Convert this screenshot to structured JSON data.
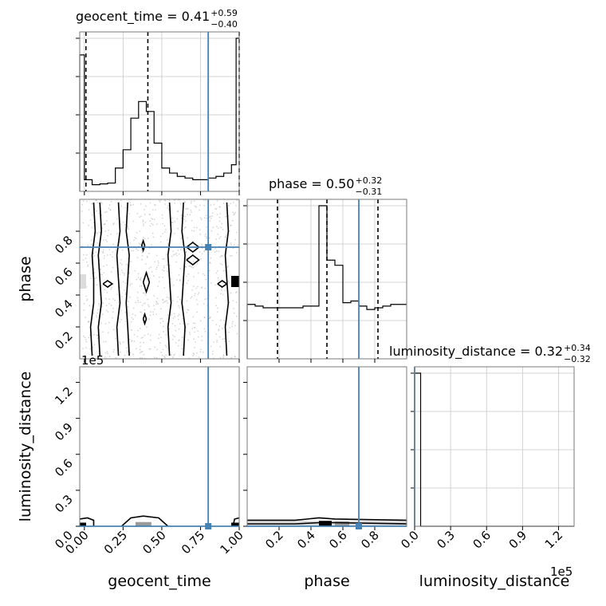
{
  "colors": {
    "truth": "#4682b4",
    "hist": "#000000",
    "density_light": "#dcdcdc",
    "density_mid": "#9a9a9a",
    "density_dark": "#000000"
  },
  "chart_data": {
    "type": "corner",
    "parameters": [
      "geocent_time",
      "phase",
      "luminosity_distance"
    ],
    "truths": {
      "geocent_time": 0.8,
      "phase": 0.7,
      "luminosity_distance": 0
    },
    "titles": [
      {
        "label": "geocent_time = 0.41",
        "plus": "+0.59",
        "minus": "−0.40"
      },
      {
        "label": "phase = 0.50",
        "plus": "+0.32",
        "minus": "−0.31"
      },
      {
        "label": "luminosity_distance = 0.32",
        "plus": "+0.34",
        "minus": "−0.32"
      }
    ],
    "axes": {
      "geocent_time": {
        "xlim": [
          -0.03,
          1.0
        ],
        "ticks": [
          "0.00",
          "0.25",
          "0.50",
          "0.75",
          "1.00"
        ],
        "tick_values": [
          0.0,
          0.25,
          0.5,
          0.75,
          1.0
        ]
      },
      "phase": {
        "xlim": [
          0.0,
          1.0
        ],
        "ticks": [
          "0.2",
          "0.4",
          "0.6",
          "0.8"
        ],
        "tick_values": [
          0.2,
          0.4,
          0.6,
          0.8
        ]
      },
      "luminosity_distance": {
        "xlim": [
          0,
          1.33
        ],
        "ticks": [
          "0.0",
          "0.3",
          "0.6",
          "0.9",
          "1.2"
        ],
        "tick_values": [
          0.0,
          0.3,
          0.6,
          0.9,
          1.2
        ],
        "offset_text": "1e5"
      }
    },
    "histograms": {
      "geocent_time": {
        "bins": [
          -0.03,
          0.0,
          0.05,
          0.1,
          0.15,
          0.2,
          0.25,
          0.3,
          0.35,
          0.4,
          0.45,
          0.5,
          0.55,
          0.6,
          0.65,
          0.7,
          0.75,
          0.8,
          0.85,
          0.9,
          0.95,
          0.98,
          1.0
        ],
        "counts": [
          0.82,
          0.07,
          0.04,
          0.045,
          0.05,
          0.14,
          0.25,
          0.44,
          0.54,
          0.48,
          0.29,
          0.14,
          0.11,
          0.09,
          0.08,
          0.07,
          0.07,
          0.08,
          0.09,
          0.11,
          0.16,
          0.92
        ],
        "quantiles": [
          0.01,
          0.41,
          1.0
        ]
      },
      "phase": {
        "bins": [
          0.0,
          0.05,
          0.1,
          0.15,
          0.2,
          0.25,
          0.3,
          0.35,
          0.4,
          0.45,
          0.5,
          0.55,
          0.6,
          0.65,
          0.7,
          0.75,
          0.8,
          0.85,
          0.9,
          0.95,
          1.0
        ],
        "counts": [
          0.32,
          0.31,
          0.3,
          0.3,
          0.3,
          0.3,
          0.3,
          0.31,
          0.31,
          0.9,
          0.58,
          0.55,
          0.33,
          0.34,
          0.31,
          0.29,
          0.3,
          0.31,
          0.32,
          0.32
        ],
        "quantiles": [
          0.19,
          0.5,
          0.82
        ]
      },
      "luminosity_distance": {
        "bins": [
          0,
          0.05,
          1.33
        ],
        "counts": [
          1.0,
          0.0
        ],
        "quantiles": []
      }
    },
    "contours_geocent_phase": [
      [
        [
          0.05,
          0.02
        ],
        [
          0.04,
          0.2
        ],
        [
          0.06,
          0.35
        ],
        [
          0.06,
          0.5
        ],
        [
          0.05,
          0.65
        ],
        [
          0.07,
          0.8
        ],
        [
          0.06,
          0.98
        ]
      ],
      [
        [
          0.1,
          0.02
        ],
        [
          0.09,
          0.2
        ],
        [
          0.11,
          0.35
        ],
        [
          0.1,
          0.5
        ],
        [
          0.09,
          0.65
        ],
        [
          0.11,
          0.8
        ],
        [
          0.1,
          0.98
        ]
      ],
      [
        [
          0.22,
          0.02
        ],
        [
          0.21,
          0.2
        ],
        [
          0.23,
          0.35
        ],
        [
          0.22,
          0.5
        ],
        [
          0.21,
          0.65
        ],
        [
          0.23,
          0.8
        ],
        [
          0.22,
          0.98
        ]
      ],
      [
        [
          0.29,
          0.02
        ],
        [
          0.28,
          0.2
        ],
        [
          0.27,
          0.35
        ],
        [
          0.28,
          0.5
        ],
        [
          0.29,
          0.65
        ],
        [
          0.27,
          0.8
        ],
        [
          0.28,
          0.98
        ]
      ],
      [
        [
          0.55,
          0.02
        ],
        [
          0.54,
          0.2
        ],
        [
          0.56,
          0.35
        ],
        [
          0.55,
          0.5
        ],
        [
          0.54,
          0.65
        ],
        [
          0.56,
          0.8
        ],
        [
          0.55,
          0.98
        ]
      ],
      [
        [
          0.64,
          0.02
        ],
        [
          0.65,
          0.2
        ],
        [
          0.63,
          0.35
        ],
        [
          0.64,
          0.5
        ],
        [
          0.65,
          0.65
        ],
        [
          0.63,
          0.8
        ],
        [
          0.64,
          0.98
        ]
      ],
      [
        [
          0.92,
          0.02
        ],
        [
          0.91,
          0.2
        ],
        [
          0.93,
          0.35
        ],
        [
          0.92,
          0.5
        ],
        [
          0.91,
          0.65
        ],
        [
          0.93,
          0.8
        ],
        [
          0.92,
          0.98
        ]
      ]
    ],
    "contour_loops_geocent_phase": [
      [
        [
          0.38,
          0.48
        ],
        [
          0.4,
          0.54
        ],
        [
          0.42,
          0.48
        ],
        [
          0.4,
          0.42
        ],
        [
          0.38,
          0.48
        ]
      ],
      [
        [
          0.38,
          0.25
        ],
        [
          0.39,
          0.28
        ],
        [
          0.4,
          0.25
        ],
        [
          0.39,
          0.22
        ],
        [
          0.38,
          0.25
        ]
      ],
      [
        [
          0.37,
          0.71
        ],
        [
          0.38,
          0.74
        ],
        [
          0.39,
          0.71
        ],
        [
          0.38,
          0.68
        ],
        [
          0.37,
          0.71
        ]
      ],
      [
        [
          0.66,
          0.7
        ],
        [
          0.7,
          0.73
        ],
        [
          0.74,
          0.7
        ],
        [
          0.7,
          0.67
        ],
        [
          0.66,
          0.7
        ]
      ],
      [
        [
          0.66,
          0.62
        ],
        [
          0.7,
          0.65
        ],
        [
          0.74,
          0.62
        ],
        [
          0.7,
          0.59
        ],
        [
          0.66,
          0.62
        ]
      ],
      [
        [
          0.12,
          0.47
        ],
        [
          0.15,
          0.49
        ],
        [
          0.18,
          0.47
        ],
        [
          0.15,
          0.45
        ],
        [
          0.12,
          0.47
        ]
      ],
      [
        [
          0.86,
          0.47
        ],
        [
          0.89,
          0.49
        ],
        [
          0.92,
          0.47
        ],
        [
          0.89,
          0.45
        ],
        [
          0.86,
          0.47
        ]
      ]
    ],
    "contours_geocent_lumdist": [
      [
        [
          -0.03,
          0.06
        ],
        [
          0.02,
          0.07
        ],
        [
          0.06,
          0.05
        ],
        [
          0.06,
          0.0
        ]
      ],
      [
        [
          0.24,
          0.0
        ],
        [
          0.3,
          0.07
        ],
        [
          0.38,
          0.085
        ],
        [
          0.48,
          0.07
        ],
        [
          0.54,
          0.0
        ]
      ],
      [
        [
          0.96,
          0.0
        ],
        [
          0.97,
          0.06
        ],
        [
          1.0,
          0.07
        ]
      ]
    ],
    "contours_phase_lumdist": [
      [
        [
          0.0,
          0.05
        ],
        [
          0.3,
          0.05
        ],
        [
          0.45,
          0.07
        ],
        [
          0.55,
          0.06
        ],
        [
          1.0,
          0.05
        ]
      ],
      [
        [
          0.0,
          0.02
        ],
        [
          0.3,
          0.02
        ],
        [
          0.45,
          0.03
        ],
        [
          0.55,
          0.03
        ],
        [
          1.0,
          0.02
        ]
      ]
    ]
  }
}
